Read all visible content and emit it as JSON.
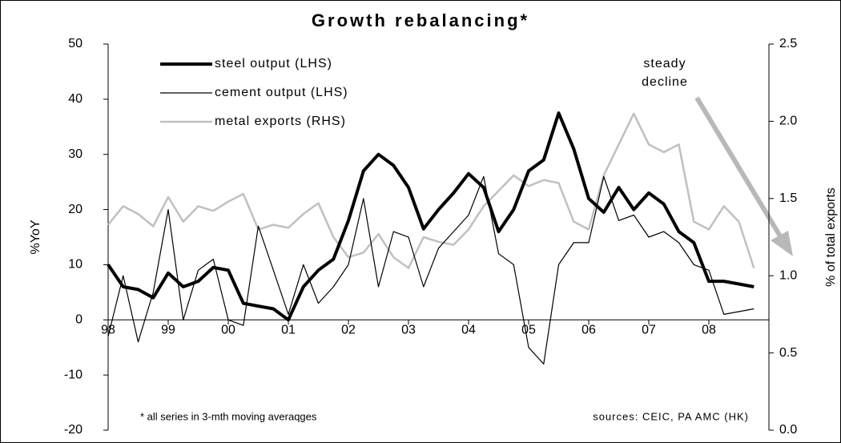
{
  "chart_data": {
    "type": "line",
    "title": "Growth rebalancing*",
    "ylabel": "%YoY",
    "y2label": "% of total exports",
    "annotation_lines": [
      "steady",
      "decline"
    ],
    "footnote": "* all series in 3-mth moving averaqges",
    "source": "sources: CEIC, PA AMC (HK)",
    "x": [
      1998,
      1998.25,
      1998.5,
      1998.75,
      1999,
      1999.25,
      1999.5,
      1999.75,
      2000,
      2000.25,
      2000.5,
      2000.75,
      2001,
      2001.25,
      2001.5,
      2001.75,
      2002,
      2002.25,
      2002.5,
      2002.75,
      2003,
      2003.25,
      2003.5,
      2003.75,
      2004,
      2004.25,
      2004.5,
      2004.75,
      2005,
      2005.25,
      2005.5,
      2005.75,
      2006,
      2006.25,
      2006.5,
      2006.75,
      2007,
      2007.25,
      2007.5,
      2007.75,
      2008,
      2008.25,
      2008.5,
      2008.75
    ],
    "series": [
      {
        "name": "steel output (LHS)",
        "color": "#000000",
        "width": 4,
        "values": [
          10,
          6,
          5.5,
          4,
          8.5,
          6,
          7,
          9.5,
          9,
          3,
          2.5,
          2,
          0,
          6,
          9,
          11,
          18,
          27,
          30,
          28,
          24,
          16.5,
          20,
          23,
          26.5,
          24,
          16,
          20,
          27,
          29,
          37.5,
          31,
          22,
          19.5,
          24,
          20,
          23,
          21,
          16,
          14,
          7,
          7,
          6.5,
          6
        ]
      },
      {
        "name": "cement output (LHS)",
        "color": "#000000",
        "width": 1.2,
        "values": [
          -3,
          8,
          -4,
          5,
          20,
          0,
          9,
          11,
          0,
          -1,
          17,
          9,
          1,
          10,
          3,
          6,
          10,
          22,
          6,
          16,
          15,
          6,
          13,
          16,
          19,
          26,
          12,
          10,
          -5,
          -8,
          10,
          14,
          14,
          26,
          18,
          19,
          15,
          16,
          14,
          10,
          9,
          1,
          1.5,
          2
        ]
      },
      {
        "name": "metal exports (RHS)",
        "color": "#c0c0c0",
        "width": 2.5,
        "axis": "y2",
        "values": [
          1.33,
          1.45,
          1.4,
          1.32,
          1.51,
          1.35,
          1.45,
          1.42,
          1.48,
          1.53,
          1.3,
          1.33,
          1.31,
          1.4,
          1.47,
          1.25,
          1.12,
          1.15,
          1.27,
          1.12,
          1.05,
          1.25,
          1.22,
          1.2,
          1.3,
          1.45,
          1.55,
          1.65,
          1.58,
          1.62,
          1.6,
          1.35,
          1.3,
          1.65,
          1.85,
          2.05,
          1.85,
          1.8,
          1.85,
          1.35,
          1.3,
          1.45,
          1.35,
          1.05
        ]
      }
    ],
    "xlim": [
      1998,
      2009
    ],
    "xticks": [
      {
        "value": 1998,
        "label": "98"
      },
      {
        "value": 1999,
        "label": "99"
      },
      {
        "value": 2000,
        "label": "00"
      },
      {
        "value": 2001,
        "label": "01"
      },
      {
        "value": 2002,
        "label": "02"
      },
      {
        "value": 2003,
        "label": "03"
      },
      {
        "value": 2004,
        "label": "04"
      },
      {
        "value": 2005,
        "label": "05"
      },
      {
        "value": 2006,
        "label": "06"
      },
      {
        "value": 2007,
        "label": "07"
      },
      {
        "value": 2008,
        "label": "08"
      }
    ],
    "ylim": [
      -20,
      50
    ],
    "yticks": [
      -20,
      -10,
      0,
      10,
      20,
      30,
      40,
      50
    ],
    "y2lim": [
      0,
      2.5
    ],
    "y2ticks": [
      {
        "value": 0,
        "label": "0.0"
      },
      0.5,
      {
        "value": 1,
        "label": "1.0"
      },
      1.5,
      {
        "value": 2,
        "label": "2.0"
      },
      2.5
    ],
    "grid": false
  }
}
